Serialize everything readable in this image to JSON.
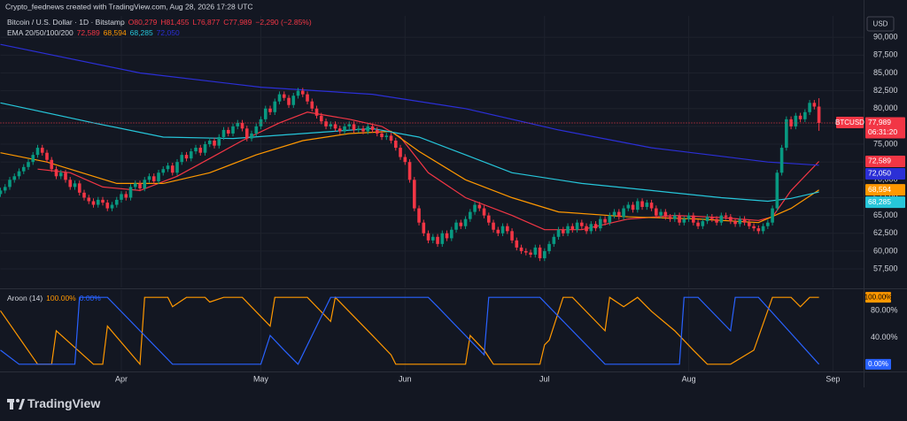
{
  "header": {
    "credit": "Crypto_feednews created with TradingView.com, Aug 28, 2026 17:28 UTC",
    "symbol": "Bitcoin / U.S. Dollar · 1D · Bitstamp",
    "ohlc": [
      "O80,279",
      "H81,455",
      "L76,877",
      "C77,989"
    ],
    "change": "−2,290 (−2.85%)"
  },
  "currency": "USD",
  "brand": "TradingView",
  "chart_data": [
    {
      "type": "candlestick",
      "name": "BTCUSD",
      "up_color": "#089981",
      "down_color": "#f23645",
      "xlim": [
        0,
        185.6
      ],
      "xticks": [
        {
          "value": 26,
          "label": "Apr"
        },
        {
          "value": 56,
          "label": "May"
        },
        {
          "value": 87,
          "label": "Jun"
        },
        {
          "value": 117,
          "label": "Jul"
        },
        {
          "value": 148,
          "label": "Aug"
        },
        {
          "value": 179,
          "label": "Sep"
        }
      ],
      "ylim": [
        54900,
        93000
      ],
      "yticks": [
        {
          "value": 57500,
          "label": "57,500"
        },
        {
          "value": 60000,
          "label": "60,000"
        },
        {
          "value": 62500,
          "label": "62,500"
        },
        {
          "value": 65000,
          "label": "65,000"
        },
        {
          "value": 67500,
          "label": "67,500"
        },
        {
          "value": 70000,
          "label": "70,000"
        },
        {
          "value": 72500,
          "label": "72,500"
        },
        {
          "value": 75000,
          "label": "75,000"
        },
        {
          "value": 77500,
          "label": "77,500"
        },
        {
          "value": 80000,
          "label": "80,000"
        },
        {
          "value": 82500,
          "label": "82,500"
        },
        {
          "value": 85000,
          "label": "85,000"
        },
        {
          "value": 87500,
          "label": "87,500"
        },
        {
          "value": 90000,
          "label": "90,000"
        }
      ],
      "grid": true,
      "last_label": "77,989",
      "countdown": "06:31:20",
      "open": [
        68000,
        68500,
        69000,
        70000,
        70500,
        71200,
        71800,
        72500,
        73500,
        74500,
        73800,
        72800,
        71500,
        70500,
        71000,
        70000,
        69000,
        69500,
        68200,
        67500,
        67000,
        66500,
        67200,
        66800,
        66000,
        66500,
        67200,
        68000,
        67500,
        69000,
        69500,
        68800,
        70000,
        70500,
        69800,
        71000,
        71500,
        72000,
        71000,
        72500,
        73500,
        73000,
        74000,
        74500,
        73800,
        75000,
        75500,
        74800,
        76000,
        77000,
        76500,
        77500,
        78000,
        77200,
        75800,
        76500,
        77500,
        78500,
        80000,
        79500,
        81000,
        82000,
        81500,
        80500,
        81800,
        82500,
        82000,
        81000,
        80000,
        79000,
        78200,
        77500,
        77800,
        77200,
        76800,
        77500,
        77800,
        77000,
        77200,
        76800,
        77500,
        77000,
        76500,
        76000,
        76200,
        75500,
        74500,
        73200,
        72500,
        70000,
        66000,
        64000,
        62500,
        61500,
        62000,
        61000,
        62500,
        61800,
        63000,
        64000,
        63500,
        64500,
        65500,
        66500,
        66000,
        65000,
        64000,
        63000,
        62500,
        63500,
        62800,
        61500,
        60500,
        60000,
        59800,
        59500,
        60500,
        59000,
        60000,
        61000,
        62000,
        63000,
        62500,
        63500,
        63000,
        64000,
        63500,
        62800,
        63800,
        63200,
        64500,
        64000,
        65000,
        65500,
        64800,
        66000,
        66500,
        65800,
        67000,
        66200,
        66800,
        66000,
        65000,
        65500,
        64800,
        64500,
        65000,
        64000,
        64500,
        65000,
        64000,
        63500,
        64200,
        64800,
        64500,
        64000,
        65000,
        64800,
        64200,
        63800,
        64500,
        64000,
        63500,
        63200,
        62800,
        63500,
        64000,
        66000,
        71000,
        74500,
        78500,
        77500,
        79000,
        78500,
        79500,
        80800,
        80279
      ],
      "high": [
        68900,
        69400,
        70400,
        70900,
        71600,
        72200,
        72900,
        73900,
        74900,
        74900,
        74200,
        73200,
        71900,
        71400,
        71400,
        70400,
        69900,
        69900,
        68600,
        67900,
        67400,
        67600,
        67600,
        67200,
        66900,
        67600,
        68400,
        68400,
        69400,
        69900,
        69900,
        70400,
        70900,
        70900,
        71400,
        71900,
        72400,
        72400,
        72900,
        73900,
        73900,
        74400,
        74900,
        74900,
        75400,
        75900,
        75900,
        76400,
        77400,
        77400,
        77900,
        78400,
        78400,
        77600,
        76900,
        77900,
        78900,
        80400,
        80400,
        81400,
        82400,
        82400,
        81900,
        82200,
        82900,
        82900,
        82400,
        81400,
        80400,
        79400,
        78600,
        78200,
        78200,
        77600,
        77900,
        78200,
        78200,
        77600,
        77600,
        77900,
        77900,
        77400,
        76900,
        76600,
        76600,
        75900,
        74900,
        73600,
        72900,
        70400,
        66400,
        64400,
        62900,
        62400,
        62400,
        62900,
        62900,
        63400,
        64400,
        64400,
        64900,
        65900,
        66900,
        66900,
        66400,
        65400,
        64400,
        63400,
        63900,
        63900,
        63200,
        61900,
        60900,
        60400,
        60200,
        60900,
        60900,
        60400,
        61400,
        62400,
        63400,
        63400,
        63900,
        63900,
        64400,
        64400,
        63900,
        64200,
        64200,
        64900,
        64900,
        65400,
        65900,
        65900,
        66400,
        66900,
        66900,
        67400,
        67400,
        67200,
        67200,
        66400,
        65900,
        65900,
        65200,
        65400,
        65400,
        64900,
        65400,
        65400,
        64400,
        64600,
        65200,
        65200,
        64900,
        65400,
        65400,
        65200,
        64600,
        64900,
        64900,
        64400,
        63900,
        63600,
        63900,
        64400,
        66400,
        71400,
        74900,
        78900,
        78900,
        79400,
        79400,
        79900,
        81200,
        81200,
        81455
      ],
      "low": [
        67600,
        68100,
        68600,
        69600,
        70100,
        70800,
        71400,
        72100,
        73100,
        73400,
        72400,
        71100,
        70100,
        70100,
        69600,
        68600,
        68600,
        67800,
        67100,
        66600,
        66100,
        66100,
        66400,
        65600,
        65600,
        66100,
        66800,
        67100,
        67100,
        68600,
        68400,
        68400,
        69600,
        69400,
        69400,
        70600,
        71100,
        70600,
        70600,
        72100,
        72600,
        72600,
        73600,
        73400,
        73400,
        74600,
        74400,
        74400,
        75600,
        76100,
        76100,
        77100,
        76800,
        75400,
        75400,
        76100,
        77100,
        78100,
        79100,
        79100,
        80600,
        81100,
        80100,
        80100,
        81400,
        81600,
        80600,
        79600,
        78600,
        77800,
        77100,
        77100,
        76800,
        76400,
        76400,
        77100,
        76600,
        76600,
        76400,
        76400,
        76600,
        76100,
        75600,
        75600,
        75100,
        74100,
        72800,
        72100,
        69600,
        65600,
        63600,
        62100,
        61100,
        61100,
        60600,
        60600,
        61400,
        61400,
        62600,
        63100,
        63100,
        64100,
        65100,
        65600,
        64600,
        63600,
        62600,
        62100,
        62100,
        62400,
        61100,
        60100,
        59600,
        59400,
        59100,
        59100,
        58600,
        58600,
        59600,
        60600,
        61600,
        62100,
        62100,
        62600,
        62600,
        63100,
        62400,
        62400,
        62800,
        62800,
        63600,
        63600,
        64600,
        64400,
        64400,
        65600,
        65400,
        65400,
        65800,
        65800,
        65600,
        64600,
        64600,
        64400,
        64100,
        64100,
        63600,
        63600,
        64100,
        63600,
        63100,
        63100,
        63800,
        64100,
        63600,
        63600,
        64400,
        63800,
        63400,
        63400,
        63600,
        63100,
        62800,
        62400,
        62400,
        63100,
        63600,
        65600,
        70600,
        74100,
        77100,
        77100,
        78100,
        78100,
        79100,
        79879,
        76877
      ],
      "close": [
        68500,
        69000,
        70000,
        70500,
        71200,
        71800,
        72500,
        73500,
        74500,
        73800,
        72800,
        71500,
        70500,
        71000,
        70000,
        69000,
        69500,
        68200,
        67500,
        67000,
        66500,
        67200,
        66800,
        66000,
        66500,
        67200,
        68000,
        67500,
        69000,
        69500,
        68800,
        70000,
        70500,
        69800,
        71000,
        71500,
        72000,
        71000,
        72500,
        73500,
        73000,
        74000,
        74500,
        73800,
        75000,
        75500,
        74800,
        76000,
        77000,
        76500,
        77500,
        78000,
        77200,
        75800,
        76500,
        77500,
        78500,
        80000,
        79500,
        81000,
        82000,
        81500,
        80500,
        81800,
        82500,
        82000,
        81000,
        80000,
        79000,
        78200,
        77500,
        77800,
        77200,
        76800,
        77500,
        77800,
        77000,
        77200,
        76800,
        77500,
        77000,
        76500,
        76000,
        76200,
        75500,
        74500,
        73200,
        72500,
        70000,
        66000,
        64000,
        62500,
        61500,
        62000,
        61000,
        62500,
        61800,
        63000,
        64000,
        63500,
        64500,
        65500,
        66500,
        66000,
        65000,
        64000,
        63000,
        62500,
        63500,
        62800,
        61500,
        60500,
        60000,
        59800,
        59500,
        60500,
        59000,
        60000,
        61000,
        62000,
        63000,
        62500,
        63500,
        63000,
        64000,
        63500,
        62800,
        63800,
        63200,
        64500,
        64000,
        65000,
        65500,
        64800,
        66000,
        66500,
        65800,
        67000,
        66200,
        66800,
        66000,
        65000,
        65500,
        64800,
        64500,
        65000,
        64000,
        64500,
        65000,
        64000,
        63500,
        64200,
        64800,
        64500,
        64000,
        65000,
        64800,
        64200,
        63800,
        64500,
        64000,
        63500,
        63200,
        62800,
        63500,
        64000,
        66000,
        71000,
        74500,
        78500,
        77500,
        79000,
        78500,
        79500,
        80800,
        80279,
        77989
      ],
      "overlay_title": "EMA 20/50/100/200",
      "series": [
        {
          "color": "#f23645",
          "x": [
            8,
            15,
            22,
            30,
            38,
            45,
            52,
            60,
            66,
            75,
            82,
            86,
            92,
            100,
            110,
            117,
            125,
            135,
            145,
            155,
            163,
            166,
            170,
            176
          ],
          "values": [
            71500,
            71000,
            69000,
            68500,
            70500,
            73000,
            75500,
            78000,
            79500,
            78500,
            77500,
            76000,
            71000,
            67500,
            65000,
            63000,
            63000,
            64500,
            65000,
            64700,
            64300,
            64800,
            68500,
            72589
          ],
          "value_label": "72,589"
        },
        {
          "color": "#ff9800",
          "x": [
            0,
            10,
            25,
            35,
            45,
            55,
            65,
            75,
            84,
            90,
            100,
            110,
            120,
            135,
            150,
            163,
            170,
            176
          ],
          "values": [
            73800,
            72500,
            69500,
            69500,
            71000,
            73500,
            75500,
            76500,
            76800,
            74000,
            70000,
            67500,
            65500,
            64800,
            64500,
            64000,
            66000,
            68594
          ],
          "value_label": "68,594"
        },
        {
          "color": "#26c6da",
          "x": [
            0,
            20,
            35,
            50,
            65,
            80,
            90,
            100,
            110,
            125,
            140,
            155,
            165,
            170,
            176
          ],
          "values": [
            80800,
            78000,
            76000,
            75800,
            76500,
            77200,
            76000,
            73500,
            71000,
            69500,
            68500,
            67500,
            67000,
            67400,
            68285
          ],
          "value_label": "68,285"
        },
        {
          "color": "#2b2fd6",
          "x": [
            0,
            30,
            56,
            80,
            100,
            120,
            140,
            155,
            165,
            176
          ],
          "values": [
            89000,
            85000,
            83000,
            82000,
            80000,
            77000,
            74500,
            73300,
            72500,
            72050
          ],
          "value_label": "72,050"
        }
      ]
    },
    {
      "type": "line",
      "title": "Aroon (14)",
      "xlim": [
        0,
        185.6
      ],
      "ylim": [
        -10.8,
        110.8
      ],
      "yticks": [
        {
          "value": 80,
          "label": "80.00%"
        },
        {
          "value": 40,
          "label": "40.00%"
        }
      ],
      "series": [
        {
          "color": "#ff9800",
          "x": [
            0,
            8,
            11,
            12,
            20,
            22,
            23,
            30,
            31,
            36,
            37,
            40,
            44,
            45,
            48,
            52,
            58,
            59,
            64,
            66,
            71,
            72,
            80,
            84,
            85,
            100,
            101,
            104,
            106,
            116,
            117,
            118,
            121,
            123,
            130,
            131,
            134,
            137,
            140,
            145,
            149,
            152,
            157,
            162,
            166,
            170,
            172,
            174,
            176
          ],
          "values": [
            80,
            0,
            0,
            50,
            0,
            0,
            57,
            0,
            100,
            100,
            86,
            100,
            100,
            93,
            100,
            100,
            57,
            100,
            100,
            100,
            64,
            100,
            43,
            14,
            0,
            0,
            43,
            21,
            0,
            0,
            29,
            36,
            100,
            100,
            50,
            100,
            86,
            100,
            79,
            50,
            21,
            0,
            0,
            21,
            100,
            100,
            86,
            100,
            100
          ],
          "value_label": "100.00%"
        },
        {
          "color": "#2962ff",
          "x": [
            0,
            4,
            16,
            17,
            23,
            37,
            56,
            58,
            61,
            64,
            71,
            86,
            92,
            94,
            104,
            105,
            106,
            111,
            116,
            130,
            146,
            147,
            150,
            157,
            158,
            163,
            176
          ],
          "values": [
            21,
            0,
            0,
            100,
            100,
            0,
            0,
            43,
            21,
            0,
            100,
            100,
            100,
            86,
            14,
            100,
            100,
            100,
            100,
            0,
            0,
            100,
            100,
            50,
            100,
            100,
            0
          ],
          "value_label": "0.00%"
        }
      ]
    }
  ]
}
